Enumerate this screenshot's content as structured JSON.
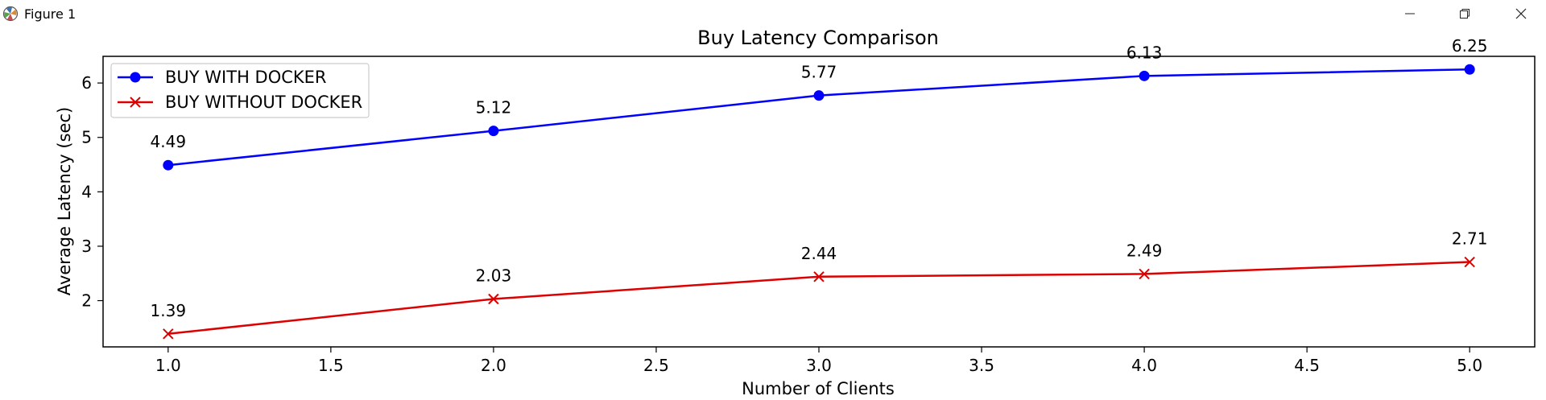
{
  "window": {
    "title": "Figure 1",
    "icons": {
      "app": "matplotlib-icon",
      "minimize": "minimize-icon",
      "maximize": "restore-icon",
      "close": "close-icon"
    }
  },
  "chart_data": {
    "type": "line",
    "title": "Buy Latency Comparison",
    "xlabel": "Number of Clients",
    "ylabel": "Average Latency (sec)",
    "x": [
      1.0,
      2.0,
      3.0,
      4.0,
      5.0
    ],
    "xlim": [
      0.8,
      5.2
    ],
    "ylim": [
      1.15,
      6.49
    ],
    "xticks": [
      "1.0",
      "1.5",
      "2.0",
      "2.5",
      "3.0",
      "3.5",
      "4.0",
      "4.5",
      "5.0"
    ],
    "yticks": [
      "2",
      "3",
      "4",
      "5",
      "6"
    ],
    "grid": false,
    "legend_position": "upper-left",
    "series": [
      {
        "name": "BUY WITH DOCKER",
        "values": [
          4.49,
          5.12,
          5.77,
          6.13,
          6.25
        ],
        "labels": [
          "4.49",
          "5.12",
          "5.77",
          "6.13",
          "6.25"
        ],
        "color": "#0000ff",
        "marker": "circle"
      },
      {
        "name": "BUY WITHOUT DOCKER",
        "values": [
          1.39,
          2.03,
          2.44,
          2.49,
          2.71
        ],
        "labels": [
          "1.39",
          "2.03",
          "2.44",
          "2.49",
          "2.71"
        ],
        "color": "#dd0000",
        "marker": "x"
      }
    ]
  }
}
